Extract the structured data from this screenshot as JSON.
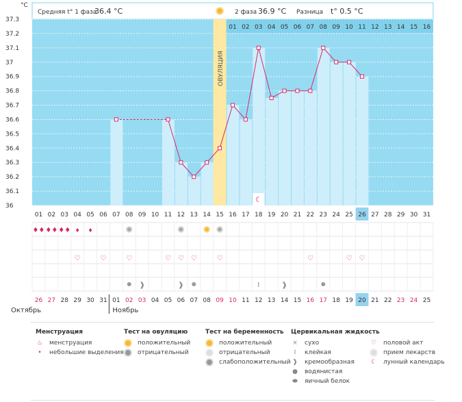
{
  "chart_data": {
    "type": "bbt-chart",
    "y_unit": "°C",
    "ylim": [
      36.0,
      37.3
    ],
    "y_ticks": [
      "37.3",
      "37.2",
      "37.1",
      "37",
      "36.9",
      "36.8",
      "36.7",
      "36.6",
      "36.5",
      "36.4",
      "36.3",
      "36.2",
      "36.1",
      "36"
    ],
    "header": {
      "phase1_label": "Средняя t° 1 фаза",
      "phase1_value": "36.4 °C",
      "phase2_label": "2 фаза",
      "phase2_value": "36.9 °C",
      "diff_label": "Разница",
      "diff_value": "t° 0.5 °C"
    },
    "ovulation_label": "ОВУЛЯЦИЯ",
    "ovulation_day_index": 14,
    "phase2_days": [
      "01",
      "02",
      "03",
      "04",
      "05",
      "06",
      "07",
      "08",
      "09",
      "10",
      "11",
      "12",
      "13",
      "14",
      "15",
      "16"
    ],
    "cycle_days": [
      "01",
      "02",
      "03",
      "04",
      "05",
      "06",
      "07",
      "08",
      "09",
      "10",
      "11",
      "12",
      "13",
      "14",
      "15",
      "16",
      "17",
      "18",
      "19",
      "20",
      "21",
      "22",
      "23",
      "24",
      "25",
      "26",
      "27",
      "28",
      "29",
      "30",
      "31"
    ],
    "current_day_index": 25,
    "temperatures": [
      null,
      null,
      null,
      null,
      null,
      null,
      36.6,
      null,
      null,
      null,
      36.6,
      36.3,
      36.2,
      36.3,
      36.4,
      36.7,
      36.6,
      37.1,
      36.75,
      36.8,
      36.8,
      36.8,
      37.1,
      37.0,
      37.0,
      36.9,
      null,
      null,
      null,
      null,
      null
    ],
    "dashed_segment_days": [
      7,
      11
    ],
    "calendar_dates": [
      "26",
      "27",
      "28",
      "29",
      "30",
      "31",
      "01",
      "02",
      "03",
      "04",
      "05",
      "06",
      "07",
      "08",
      "09",
      "10",
      "11",
      "12",
      "13",
      "14",
      "15",
      "16",
      "17",
      "18",
      "19",
      "20",
      "21",
      "22",
      "23",
      "24",
      "25"
    ],
    "weekend_dates_index": [
      0,
      1,
      7,
      8,
      14,
      15,
      21,
      22,
      28,
      29
    ],
    "month_prev": "Октябрь",
    "month_next": "Ноябрь",
    "menstruation_heavy_days": [
      0,
      1,
      2
    ],
    "menstruation_light_days": [
      3,
      4
    ],
    "ovulation_test_positive_days": [
      13
    ],
    "ovulation_test_negative_days": [
      7,
      11,
      14
    ],
    "intercourse_days": [
      3,
      5,
      7,
      10,
      11,
      12,
      14,
      21,
      24,
      25
    ],
    "fluid": {
      "sticky": [
        17
      ],
      "creamy": [
        8,
        11,
        19
      ],
      "watery": [
        7,
        12,
        22
      ]
    },
    "moon_day": 17
  },
  "legend": {
    "menstruation": {
      "title": "Менструация",
      "items": [
        "менструация",
        "небольшие выделения"
      ]
    },
    "ovulation_test": {
      "title": "Тест на овуляцию",
      "items": [
        "положительный",
        "отрицательный"
      ]
    },
    "pregnancy_test": {
      "title": "Тест на беременность",
      "items": [
        "положительный",
        "отрицательный",
        "слабоположительный"
      ]
    },
    "cervical_fluid": {
      "title": "Цервикальная жидкость",
      "items": [
        "сухо",
        "клейкая",
        "кремообразная",
        "водянистая",
        "яичный белок"
      ]
    },
    "other": {
      "items": [
        "половой акт",
        "прием лекарств",
        "лунный календарь"
      ]
    }
  },
  "colors": {
    "sky": "#96dbf2",
    "bar": "#cfeefb",
    "pink": "#d6286b",
    "ovu": "#fde9a3",
    "current": "#95d3ee"
  }
}
